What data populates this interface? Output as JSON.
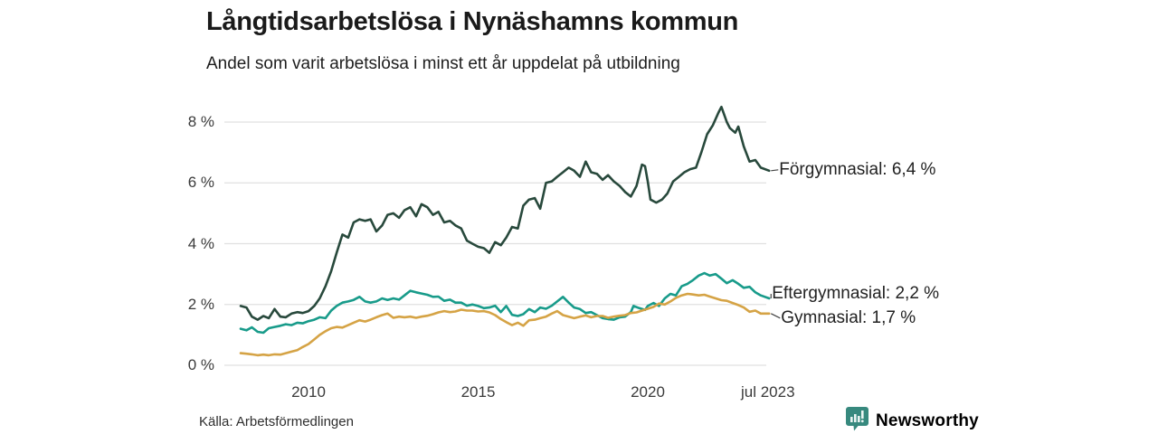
{
  "header": {
    "title": "Långtidsarbetslösa i Nynäshamns kommun",
    "subtitle": "Andel som varit arbetslösa i minst ett år uppdelat på utbildning"
  },
  "chart_data": {
    "type": "line",
    "x_unit": "decimal_year",
    "xlim": [
      2008.0,
      2023.58
    ],
    "ylim": [
      0,
      8
    ],
    "grid": true,
    "gridline_color": "#e0e0e0",
    "y_ticks": [
      {
        "value": 0,
        "label": "0 %"
      },
      {
        "value": 2,
        "label": "2 %"
      },
      {
        "value": 4,
        "label": "4 %"
      },
      {
        "value": 6,
        "label": "6 %"
      },
      {
        "value": 8,
        "label": "8 %"
      }
    ],
    "x_ticks": [
      {
        "value": 2010,
        "label": "2010"
      },
      {
        "value": 2015,
        "label": "2015"
      },
      {
        "value": 2020,
        "label": "2020"
      },
      {
        "value": 2023.54,
        "label": "jul 2023"
      }
    ],
    "legend_position": "end-of-line-labels",
    "series": [
      {
        "key": "forgymnasial",
        "name": "Förgymnasial",
        "end_label": "Förgymnasial: 6,4 %",
        "last_value": "6,4 %",
        "color": "#28493c",
        "points": [
          [
            2008.0,
            1.95
          ],
          [
            2008.17,
            1.9
          ],
          [
            2008.33,
            1.6
          ],
          [
            2008.5,
            1.5
          ],
          [
            2008.67,
            1.62
          ],
          [
            2008.83,
            1.55
          ],
          [
            2009.0,
            1.85
          ],
          [
            2009.17,
            1.6
          ],
          [
            2009.33,
            1.58
          ],
          [
            2009.5,
            1.7
          ],
          [
            2009.67,
            1.75
          ],
          [
            2009.83,
            1.72
          ],
          [
            2010.0,
            1.78
          ],
          [
            2010.17,
            1.95
          ],
          [
            2010.33,
            2.2
          ],
          [
            2010.5,
            2.6
          ],
          [
            2010.67,
            3.1
          ],
          [
            2010.83,
            3.7
          ],
          [
            2011.0,
            4.3
          ],
          [
            2011.17,
            4.2
          ],
          [
            2011.33,
            4.7
          ],
          [
            2011.5,
            4.8
          ],
          [
            2011.67,
            4.75
          ],
          [
            2011.83,
            4.8
          ],
          [
            2012.0,
            4.4
          ],
          [
            2012.17,
            4.6
          ],
          [
            2012.33,
            4.95
          ],
          [
            2012.5,
            5.0
          ],
          [
            2012.67,
            4.85
          ],
          [
            2012.83,
            5.1
          ],
          [
            2013.0,
            5.2
          ],
          [
            2013.17,
            4.9
          ],
          [
            2013.33,
            5.3
          ],
          [
            2013.5,
            5.2
          ],
          [
            2013.67,
            4.95
          ],
          [
            2013.83,
            5.05
          ],
          [
            2014.0,
            4.7
          ],
          [
            2014.17,
            4.75
          ],
          [
            2014.33,
            4.6
          ],
          [
            2014.5,
            4.5
          ],
          [
            2014.67,
            4.1
          ],
          [
            2014.83,
            4.0
          ],
          [
            2015.0,
            3.9
          ],
          [
            2015.17,
            3.85
          ],
          [
            2015.33,
            3.7
          ],
          [
            2015.5,
            4.05
          ],
          [
            2015.67,
            3.95
          ],
          [
            2015.83,
            4.2
          ],
          [
            2016.0,
            4.55
          ],
          [
            2016.17,
            4.5
          ],
          [
            2016.33,
            5.25
          ],
          [
            2016.5,
            5.45
          ],
          [
            2016.67,
            5.5
          ],
          [
            2016.83,
            5.15
          ],
          [
            2017.0,
            6.0
          ],
          [
            2017.17,
            6.05
          ],
          [
            2017.33,
            6.2
          ],
          [
            2017.5,
            6.35
          ],
          [
            2017.67,
            6.5
          ],
          [
            2017.83,
            6.4
          ],
          [
            2018.0,
            6.2
          ],
          [
            2018.17,
            6.7
          ],
          [
            2018.33,
            6.35
          ],
          [
            2018.5,
            6.3
          ],
          [
            2018.67,
            6.1
          ],
          [
            2018.83,
            6.25
          ],
          [
            2019.0,
            6.05
          ],
          [
            2019.17,
            5.9
          ],
          [
            2019.33,
            5.7
          ],
          [
            2019.5,
            5.55
          ],
          [
            2019.67,
            5.9
          ],
          [
            2019.83,
            6.6
          ],
          [
            2019.92,
            6.55
          ],
          [
            2020.0,
            6.05
          ],
          [
            2020.08,
            5.45
          ],
          [
            2020.25,
            5.35
          ],
          [
            2020.42,
            5.45
          ],
          [
            2020.58,
            5.65
          ],
          [
            2020.75,
            6.05
          ],
          [
            2020.92,
            6.2
          ],
          [
            2021.08,
            6.35
          ],
          [
            2021.25,
            6.45
          ],
          [
            2021.42,
            6.5
          ],
          [
            2021.58,
            7.0
          ],
          [
            2021.75,
            7.6
          ],
          [
            2021.92,
            7.9
          ],
          [
            2022.08,
            8.3
          ],
          [
            2022.17,
            8.5
          ],
          [
            2022.33,
            8.0
          ],
          [
            2022.42,
            7.8
          ],
          [
            2022.58,
            7.65
          ],
          [
            2022.67,
            7.85
          ],
          [
            2022.83,
            7.2
          ],
          [
            2023.0,
            6.7
          ],
          [
            2023.17,
            6.75
          ],
          [
            2023.33,
            6.5
          ],
          [
            2023.58,
            6.4
          ]
        ]
      },
      {
        "key": "eftergymnasial",
        "name": "Eftergymnasial",
        "end_label": "Eftergymnasial: 2,2 %",
        "last_value": "2,2 %",
        "color": "#189b8a",
        "points": [
          [
            2008.0,
            1.2
          ],
          [
            2008.17,
            1.15
          ],
          [
            2008.33,
            1.25
          ],
          [
            2008.5,
            1.1
          ],
          [
            2008.67,
            1.07
          ],
          [
            2008.83,
            1.22
          ],
          [
            2009.0,
            1.26
          ],
          [
            2009.17,
            1.3
          ],
          [
            2009.33,
            1.35
          ],
          [
            2009.5,
            1.32
          ],
          [
            2009.67,
            1.4
          ],
          [
            2009.83,
            1.38
          ],
          [
            2010.0,
            1.45
          ],
          [
            2010.17,
            1.5
          ],
          [
            2010.33,
            1.58
          ],
          [
            2010.5,
            1.55
          ],
          [
            2010.67,
            1.8
          ],
          [
            2010.83,
            1.95
          ],
          [
            2011.0,
            2.06
          ],
          [
            2011.17,
            2.1
          ],
          [
            2011.33,
            2.15
          ],
          [
            2011.5,
            2.25
          ],
          [
            2011.67,
            2.1
          ],
          [
            2011.83,
            2.06
          ],
          [
            2012.0,
            2.1
          ],
          [
            2012.17,
            2.2
          ],
          [
            2012.33,
            2.15
          ],
          [
            2012.5,
            2.2
          ],
          [
            2012.67,
            2.16
          ],
          [
            2012.83,
            2.3
          ],
          [
            2013.0,
            2.45
          ],
          [
            2013.17,
            2.4
          ],
          [
            2013.33,
            2.36
          ],
          [
            2013.5,
            2.32
          ],
          [
            2013.67,
            2.25
          ],
          [
            2013.83,
            2.26
          ],
          [
            2014.0,
            2.12
          ],
          [
            2014.17,
            2.16
          ],
          [
            2014.33,
            2.06
          ],
          [
            2014.5,
            2.06
          ],
          [
            2014.67,
            1.96
          ],
          [
            2014.83,
            2.0
          ],
          [
            2015.0,
            1.95
          ],
          [
            2015.17,
            1.88
          ],
          [
            2015.33,
            1.9
          ],
          [
            2015.5,
            1.96
          ],
          [
            2015.67,
            1.75
          ],
          [
            2015.83,
            1.95
          ],
          [
            2016.0,
            1.66
          ],
          [
            2016.17,
            1.62
          ],
          [
            2016.33,
            1.68
          ],
          [
            2016.5,
            1.85
          ],
          [
            2016.67,
            1.75
          ],
          [
            2016.83,
            1.9
          ],
          [
            2017.0,
            1.86
          ],
          [
            2017.17,
            1.96
          ],
          [
            2017.33,
            2.1
          ],
          [
            2017.5,
            2.25
          ],
          [
            2017.67,
            2.06
          ],
          [
            2017.83,
            1.9
          ],
          [
            2018.0,
            1.85
          ],
          [
            2018.17,
            1.72
          ],
          [
            2018.33,
            1.75
          ],
          [
            2018.5,
            1.65
          ],
          [
            2018.67,
            1.55
          ],
          [
            2018.83,
            1.52
          ],
          [
            2019.0,
            1.5
          ],
          [
            2019.17,
            1.58
          ],
          [
            2019.33,
            1.6
          ],
          [
            2019.5,
            1.75
          ],
          [
            2019.58,
            1.95
          ],
          [
            2019.75,
            1.88
          ],
          [
            2019.92,
            1.82
          ],
          [
            2020.0,
            1.95
          ],
          [
            2020.17,
            2.05
          ],
          [
            2020.33,
            1.95
          ],
          [
            2020.5,
            2.2
          ],
          [
            2020.67,
            2.35
          ],
          [
            2020.83,
            2.3
          ],
          [
            2021.0,
            2.6
          ],
          [
            2021.17,
            2.68
          ],
          [
            2021.33,
            2.8
          ],
          [
            2021.5,
            2.95
          ],
          [
            2021.67,
            3.03
          ],
          [
            2021.83,
            2.95
          ],
          [
            2022.0,
            3.0
          ],
          [
            2022.17,
            2.85
          ],
          [
            2022.33,
            2.7
          ],
          [
            2022.5,
            2.8
          ],
          [
            2022.67,
            2.68
          ],
          [
            2022.83,
            2.55
          ],
          [
            2023.0,
            2.58
          ],
          [
            2023.17,
            2.4
          ],
          [
            2023.33,
            2.3
          ],
          [
            2023.58,
            2.2
          ]
        ]
      },
      {
        "key": "gymnasial",
        "name": "Gymnasial",
        "end_label": "Gymnasial: 1,7 %",
        "last_value": "1,7 %",
        "color": "#d5a345",
        "points": [
          [
            2008.0,
            0.4
          ],
          [
            2008.17,
            0.38
          ],
          [
            2008.33,
            0.36
          ],
          [
            2008.5,
            0.33
          ],
          [
            2008.67,
            0.35
          ],
          [
            2008.83,
            0.33
          ],
          [
            2009.0,
            0.36
          ],
          [
            2009.17,
            0.35
          ],
          [
            2009.33,
            0.4
          ],
          [
            2009.5,
            0.45
          ],
          [
            2009.67,
            0.5
          ],
          [
            2009.83,
            0.6
          ],
          [
            2010.0,
            0.7
          ],
          [
            2010.17,
            0.85
          ],
          [
            2010.33,
            1.0
          ],
          [
            2010.5,
            1.12
          ],
          [
            2010.67,
            1.22
          ],
          [
            2010.83,
            1.26
          ],
          [
            2011.0,
            1.24
          ],
          [
            2011.17,
            1.32
          ],
          [
            2011.33,
            1.4
          ],
          [
            2011.5,
            1.48
          ],
          [
            2011.67,
            1.44
          ],
          [
            2011.83,
            1.5
          ],
          [
            2012.0,
            1.58
          ],
          [
            2012.17,
            1.65
          ],
          [
            2012.33,
            1.7
          ],
          [
            2012.5,
            1.56
          ],
          [
            2012.67,
            1.6
          ],
          [
            2012.83,
            1.58
          ],
          [
            2013.0,
            1.6
          ],
          [
            2013.17,
            1.56
          ],
          [
            2013.33,
            1.6
          ],
          [
            2013.5,
            1.63
          ],
          [
            2013.67,
            1.68
          ],
          [
            2013.83,
            1.74
          ],
          [
            2014.0,
            1.78
          ],
          [
            2014.17,
            1.75
          ],
          [
            2014.33,
            1.77
          ],
          [
            2014.5,
            1.83
          ],
          [
            2014.67,
            1.8
          ],
          [
            2014.83,
            1.8
          ],
          [
            2015.0,
            1.77
          ],
          [
            2015.17,
            1.78
          ],
          [
            2015.33,
            1.74
          ],
          [
            2015.5,
            1.65
          ],
          [
            2015.67,
            1.52
          ],
          [
            2015.83,
            1.42
          ],
          [
            2016.0,
            1.32
          ],
          [
            2016.17,
            1.4
          ],
          [
            2016.33,
            1.3
          ],
          [
            2016.5,
            1.48
          ],
          [
            2016.67,
            1.5
          ],
          [
            2016.83,
            1.55
          ],
          [
            2017.0,
            1.6
          ],
          [
            2017.17,
            1.7
          ],
          [
            2017.33,
            1.78
          ],
          [
            2017.5,
            1.65
          ],
          [
            2017.67,
            1.6
          ],
          [
            2017.83,
            1.55
          ],
          [
            2018.0,
            1.6
          ],
          [
            2018.17,
            1.64
          ],
          [
            2018.33,
            1.58
          ],
          [
            2018.5,
            1.62
          ],
          [
            2018.67,
            1.62
          ],
          [
            2018.83,
            1.56
          ],
          [
            2019.0,
            1.6
          ],
          [
            2019.17,
            1.63
          ],
          [
            2019.33,
            1.65
          ],
          [
            2019.5,
            1.72
          ],
          [
            2019.67,
            1.74
          ],
          [
            2019.83,
            1.8
          ],
          [
            2020.0,
            1.86
          ],
          [
            2020.17,
            1.92
          ],
          [
            2020.33,
            2.03
          ],
          [
            2020.5,
            2.0
          ],
          [
            2020.67,
            2.1
          ],
          [
            2020.83,
            2.22
          ],
          [
            2021.0,
            2.3
          ],
          [
            2021.17,
            2.35
          ],
          [
            2021.33,
            2.33
          ],
          [
            2021.5,
            2.3
          ],
          [
            2021.67,
            2.32
          ],
          [
            2021.83,
            2.26
          ],
          [
            2022.0,
            2.2
          ],
          [
            2022.17,
            2.14
          ],
          [
            2022.33,
            2.12
          ],
          [
            2022.5,
            2.05
          ],
          [
            2022.67,
            1.98
          ],
          [
            2022.83,
            1.9
          ],
          [
            2023.0,
            1.76
          ],
          [
            2023.17,
            1.8
          ],
          [
            2023.33,
            1.7
          ],
          [
            2023.58,
            1.7
          ]
        ]
      }
    ]
  },
  "footer": {
    "source": "Källa: Arbetsförmedlingen",
    "brand": "Newsworthy",
    "brand_color": "#37897e"
  }
}
